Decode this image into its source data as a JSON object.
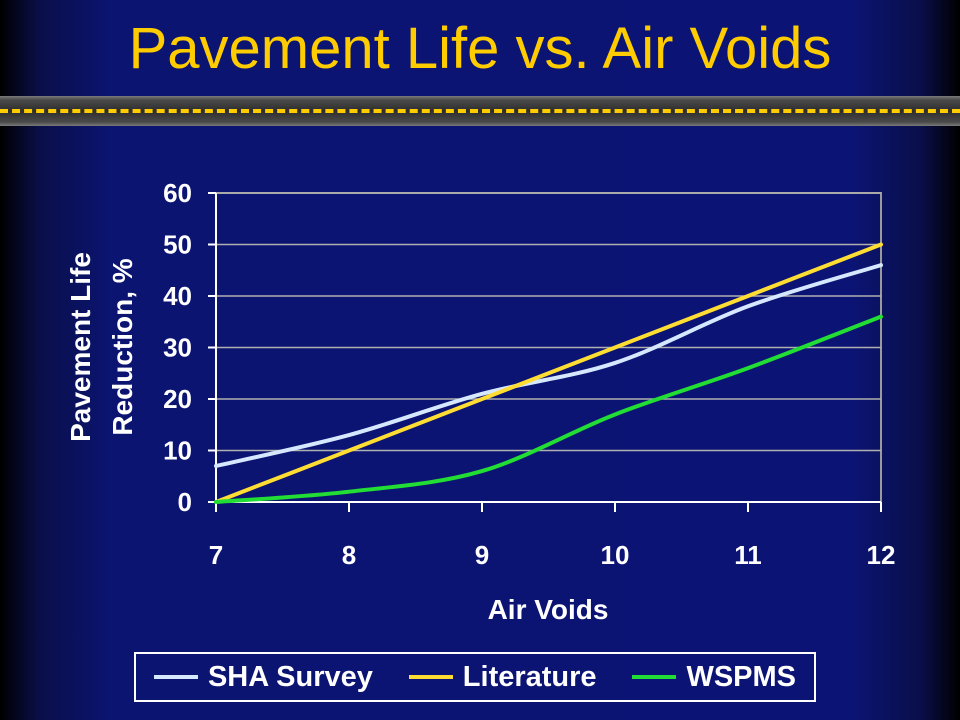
{
  "slide": {
    "title": "Pavement Life vs. Air Voids"
  },
  "chart_data": {
    "type": "line",
    "xlabel": "Air Voids",
    "ylabel_lines": [
      "Pavement Life",
      "Reduction, %"
    ],
    "x": [
      7,
      8,
      9,
      10,
      11,
      12
    ],
    "xlim": [
      7,
      12
    ],
    "ylim": [
      0,
      60
    ],
    "y_ticks": [
      0,
      10,
      20,
      30,
      40,
      50,
      60
    ],
    "grid": true,
    "legend_position": "bottom",
    "series": [
      {
        "name": "SHA Survey",
        "color": "#d6e8ff",
        "values": [
          7,
          13,
          21,
          27,
          38,
          46
        ]
      },
      {
        "name": "Literature",
        "color": "#ffdd33",
        "values": [
          0,
          10,
          20,
          30,
          40,
          50
        ]
      },
      {
        "name": "WSPMS",
        "color": "#22dd33",
        "values": [
          0,
          2,
          6,
          17,
          26,
          36
        ]
      }
    ]
  }
}
